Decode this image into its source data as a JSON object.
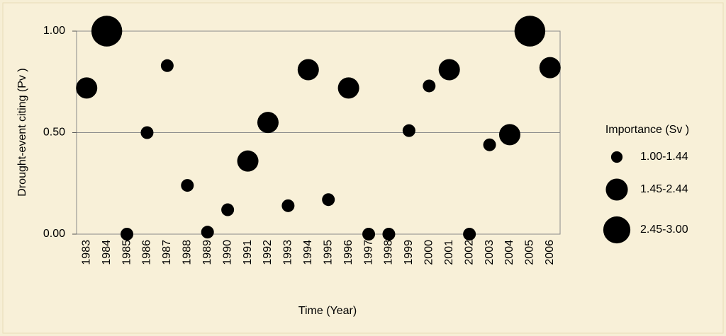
{
  "chart_data": {
    "type": "bubble",
    "xlabel": "Time (Year)",
    "ylabel": "Drought-event citing (Pv )",
    "categories": [
      "1983",
      "1984",
      "1985",
      "1986",
      "1987",
      "1988",
      "1989",
      "1990",
      "1991",
      "1992",
      "1993",
      "1994",
      "1995",
      "1996",
      "1997",
      "1998",
      "1999",
      "2000",
      "2001",
      "2002",
      "2003",
      "2004",
      "2005",
      "2006"
    ],
    "values": [
      0.72,
      1.0,
      0.0,
      0.5,
      0.83,
      0.24,
      0.01,
      0.12,
      0.36,
      0.55,
      0.14,
      0.81,
      0.17,
      0.72,
      0.0,
      0.0,
      0.51,
      0.73,
      0.81,
      0.0,
      0.44,
      0.49,
      1.0,
      0.82
    ],
    "sizes": [
      2.0,
      2.9,
      1.2,
      1.2,
      1.2,
      1.2,
      1.2,
      1.2,
      2.0,
      2.0,
      1.2,
      2.0,
      1.2,
      2.0,
      1.2,
      1.2,
      1.2,
      1.2,
      2.0,
      1.2,
      1.2,
      2.0,
      2.9,
      2.0
    ],
    "color": "#000000",
    "ylim": [
      0,
      1
    ],
    "yticks": [
      {
        "value": 0,
        "label": "0.00"
      },
      {
        "value": 0.5,
        "label": "0.50"
      },
      {
        "value": 1,
        "label": "1.00"
      }
    ],
    "grid": true,
    "legend": {
      "title": "Importance (Sv )",
      "entries": [
        "1.00-1.44",
        "1.45-2.44",
        "2.45-3.00"
      ]
    }
  }
}
